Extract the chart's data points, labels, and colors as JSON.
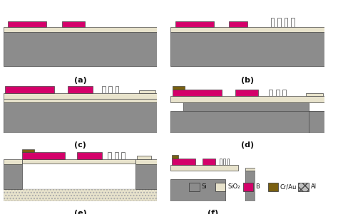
{
  "colors": {
    "Si": "#8c8c8c",
    "SiO2": "#e8e3cc",
    "B": "#d4006a",
    "CrAu": "#7a6010",
    "Al": "#c0c0c0",
    "background": "#ffffff",
    "edge": "#555555"
  },
  "legend_labels": [
    "Si",
    "SiO₂",
    "B",
    "Cr/Au",
    "Al"
  ],
  "panel_labels": [
    "(a)",
    "(b)",
    "(c)",
    "(d)",
    "(e)",
    "(f)"
  ]
}
